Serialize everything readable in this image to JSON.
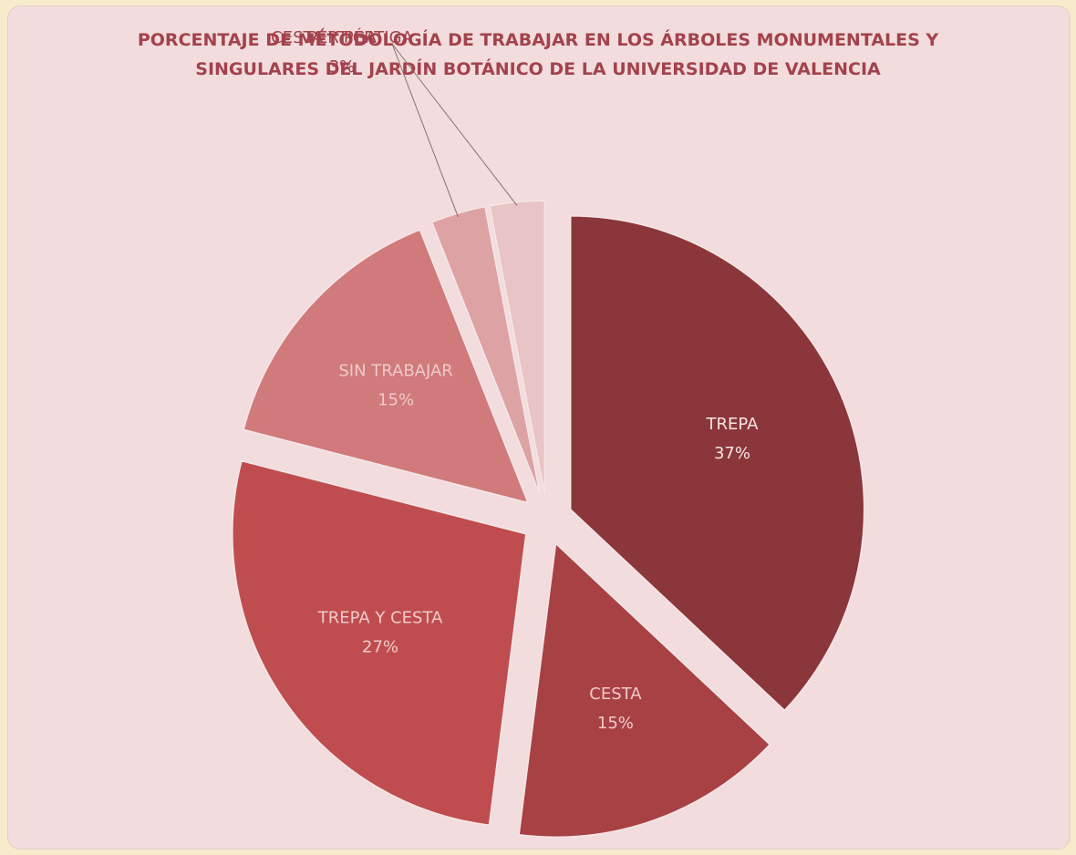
{
  "chart_data": {
    "type": "pie",
    "title": "PORCENTAJE DE MÉTODOLOGÍA DE TRABAJAR EN LOS ÁRBOLES MONUMENTALES  Y SINGULARES DEL JARDÍN BOTÁNICO DE LA UNIVERSIDAD DE VALENCIA",
    "categories": [
      "TREPA",
      "CESTA",
      "TREPA Y CESTA",
      "SIN TRABAJAR",
      "PÉRTIGA",
      "CESTA Y PÉRTIGA"
    ],
    "values": [
      37,
      15,
      27,
      15,
      3,
      3
    ],
    "value_labels": [
      "37%",
      "15%",
      "27%",
      "15%",
      "3%",
      "3%"
    ],
    "colors": [
      "#8b363a",
      "#a84144",
      "#bf4d4f",
      "#d07a7b",
      "#dda2a4",
      "#e8c4c6"
    ]
  }
}
